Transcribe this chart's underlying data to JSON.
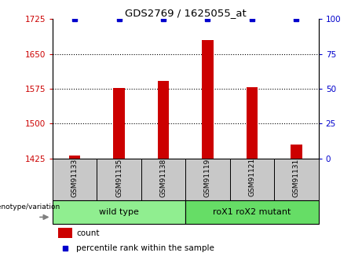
{
  "title": "GDS2769 / 1625055_at",
  "samples": [
    "GSM91133",
    "GSM91135",
    "GSM91138",
    "GSM91119",
    "GSM91121",
    "GSM91131"
  ],
  "count_values": [
    1432,
    1576,
    1592,
    1680,
    1578,
    1455
  ],
  "percentile_values": [
    100,
    100,
    100,
    100,
    100,
    100
  ],
  "ylim_left": [
    1425,
    1725
  ],
  "ylim_right": [
    0,
    100
  ],
  "yticks_left": [
    1425,
    1500,
    1575,
    1650,
    1725
  ],
  "yticks_right": [
    0,
    25,
    50,
    75,
    100
  ],
  "bar_color": "#cc0000",
  "dot_color": "#0000cc",
  "wild_type_color": "#90ee90",
  "mutant_color": "#66dd66",
  "left_tick_color": "#cc0000",
  "right_tick_color": "#0000cc",
  "xlabel_area_bg": "#c8c8c8",
  "genotype_label": "genotype/variation",
  "legend_count": "count",
  "legend_percentile": "percentile rank within the sample",
  "group_names": [
    "wild type",
    "roX1 roX2 mutant"
  ],
  "bar_width": 0.25
}
